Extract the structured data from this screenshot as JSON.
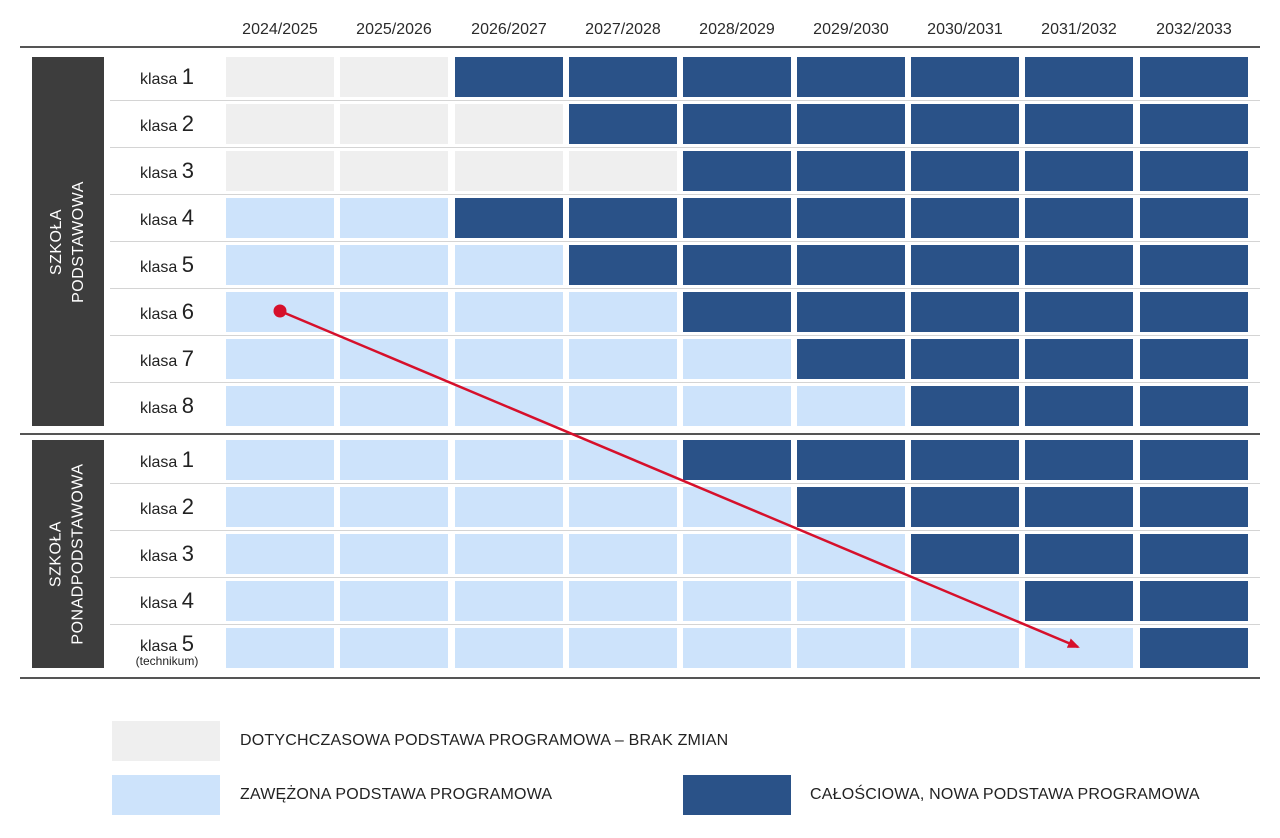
{
  "years": [
    "2024/2025",
    "2025/2026",
    "2026/2027",
    "2027/2028",
    "2028/2029",
    "2029/2030",
    "2030/2031",
    "2031/2032",
    "2032/2033"
  ],
  "groups": [
    {
      "name_lines": [
        "SZKOŁA",
        "PODSTAWOWA"
      ],
      "rows": [
        {
          "label": "klasa",
          "num": "1",
          "cells": [
            "old",
            "old",
            "new",
            "new",
            "new",
            "new",
            "new",
            "new",
            "new"
          ]
        },
        {
          "label": "klasa",
          "num": "2",
          "cells": [
            "old",
            "old",
            "old",
            "new",
            "new",
            "new",
            "new",
            "new",
            "new"
          ]
        },
        {
          "label": "klasa",
          "num": "3",
          "cells": [
            "old",
            "old",
            "old",
            "old",
            "new",
            "new",
            "new",
            "new",
            "new"
          ]
        },
        {
          "label": "klasa",
          "num": "4",
          "cells": [
            "narrow",
            "narrow",
            "new",
            "new",
            "new",
            "new",
            "new",
            "new",
            "new"
          ]
        },
        {
          "label": "klasa",
          "num": "5",
          "cells": [
            "narrow",
            "narrow",
            "narrow",
            "new",
            "new",
            "new",
            "new",
            "new",
            "new"
          ]
        },
        {
          "label": "klasa",
          "num": "6",
          "cells": [
            "narrow",
            "narrow",
            "narrow",
            "narrow",
            "new",
            "new",
            "new",
            "new",
            "new"
          ]
        },
        {
          "label": "klasa",
          "num": "7",
          "cells": [
            "narrow",
            "narrow",
            "narrow",
            "narrow",
            "narrow",
            "new",
            "new",
            "new",
            "new"
          ]
        },
        {
          "label": "klasa",
          "num": "8",
          "cells": [
            "narrow",
            "narrow",
            "narrow",
            "narrow",
            "narrow",
            "narrow",
            "new",
            "new",
            "new"
          ]
        }
      ]
    },
    {
      "name_lines": [
        "SZKOŁA",
        "PONADPODSTAWOWA"
      ],
      "rows": [
        {
          "label": "klasa",
          "num": "1",
          "cells": [
            "narrow",
            "narrow",
            "narrow",
            "narrow",
            "new",
            "new",
            "new",
            "new",
            "new"
          ]
        },
        {
          "label": "klasa",
          "num": "2",
          "cells": [
            "narrow",
            "narrow",
            "narrow",
            "narrow",
            "narrow",
            "new",
            "new",
            "new",
            "new"
          ]
        },
        {
          "label": "klasa",
          "num": "3",
          "cells": [
            "narrow",
            "narrow",
            "narrow",
            "narrow",
            "narrow",
            "narrow",
            "new",
            "new",
            "new"
          ]
        },
        {
          "label": "klasa",
          "num": "4",
          "cells": [
            "narrow",
            "narrow",
            "narrow",
            "narrow",
            "narrow",
            "narrow",
            "narrow",
            "new",
            "new"
          ]
        },
        {
          "label": "klasa",
          "num": "5",
          "note": "(technikum)",
          "cells": [
            "narrow",
            "narrow",
            "narrow",
            "narrow",
            "narrow",
            "narrow",
            "narrow",
            "narrow",
            "new"
          ]
        }
      ]
    }
  ],
  "legend": {
    "old": "DOTYCHCZASOWA PODSTAWA PROGRAMOWA – BRAK ZMIAN",
    "narrow": "ZAWĘŻONA PODSTAWA PROGRAMOWA",
    "new": "CAŁOŚCIOWA, NOWA PODSTAWA PROGRAMOWA"
  },
  "colors": {
    "old": "#efefef",
    "narrow": "#cde3fb",
    "new": "#2a5288",
    "arrow": "#d6102b",
    "group_box": "#3d3d3d"
  }
}
